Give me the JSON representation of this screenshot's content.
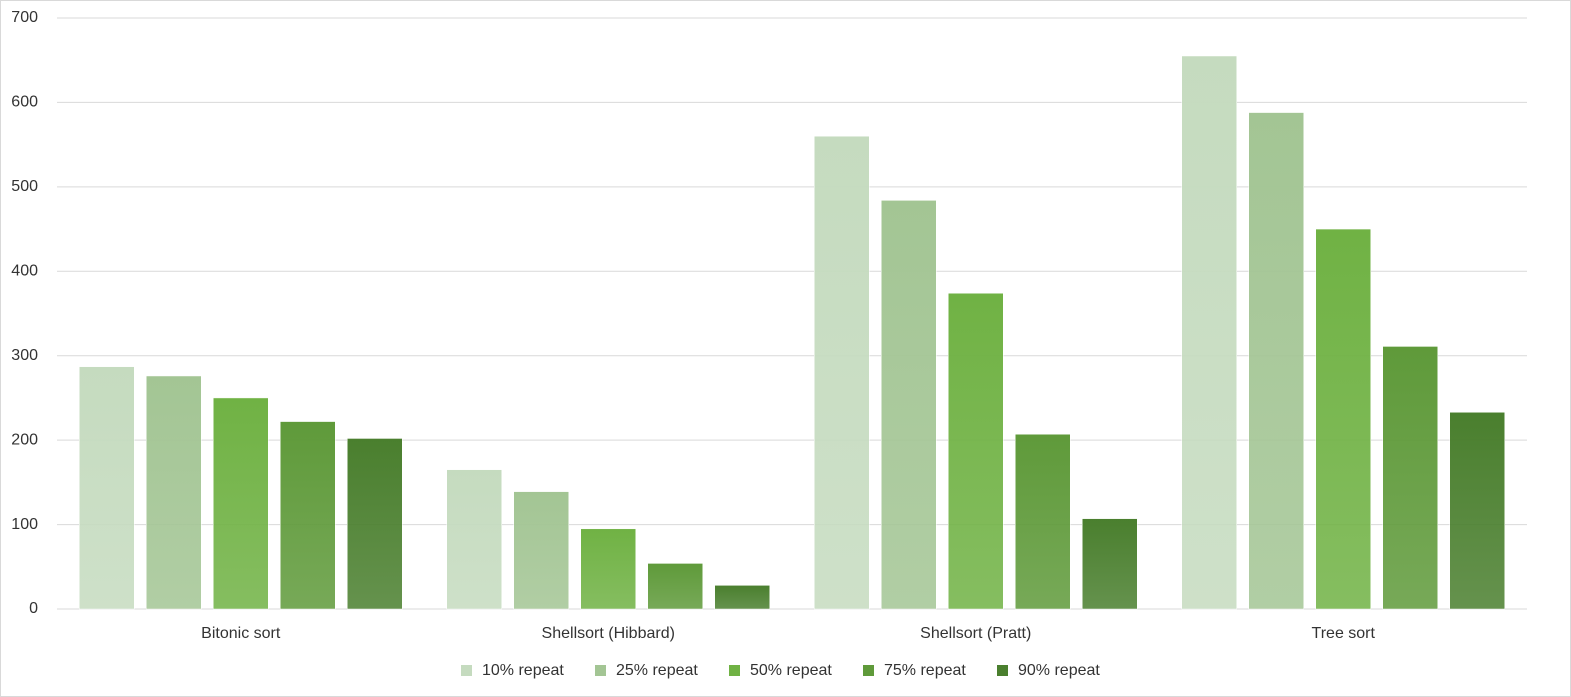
{
  "chart_data": {
    "type": "bar",
    "categories": [
      "Bitonic sort",
      "Shellsort (Hibbard)",
      "Shellsort (Pratt)",
      "Tree sort"
    ],
    "series": [
      {
        "name": "10% repeat",
        "color": "#c5dbbf",
        "values": [
          287,
          165,
          560,
          655
        ]
      },
      {
        "name": "25% repeat",
        "color": "#a3c594",
        "values": [
          276,
          139,
          484,
          588
        ]
      },
      {
        "name": "50% repeat",
        "color": "#70b244",
        "values": [
          250,
          95,
          374,
          450
        ]
      },
      {
        "name": "75% repeat",
        "color": "#5f9a3a",
        "values": [
          222,
          54,
          207,
          311
        ]
      },
      {
        "name": "90% repeat",
        "color": "#4a7f2e",
        "values": [
          202,
          28,
          107,
          233
        ]
      }
    ],
    "ylim": [
      0,
      700
    ],
    "yticks": [
      0,
      100,
      200,
      300,
      400,
      500,
      600,
      700
    ],
    "grid": true,
    "legend": "bottom"
  }
}
